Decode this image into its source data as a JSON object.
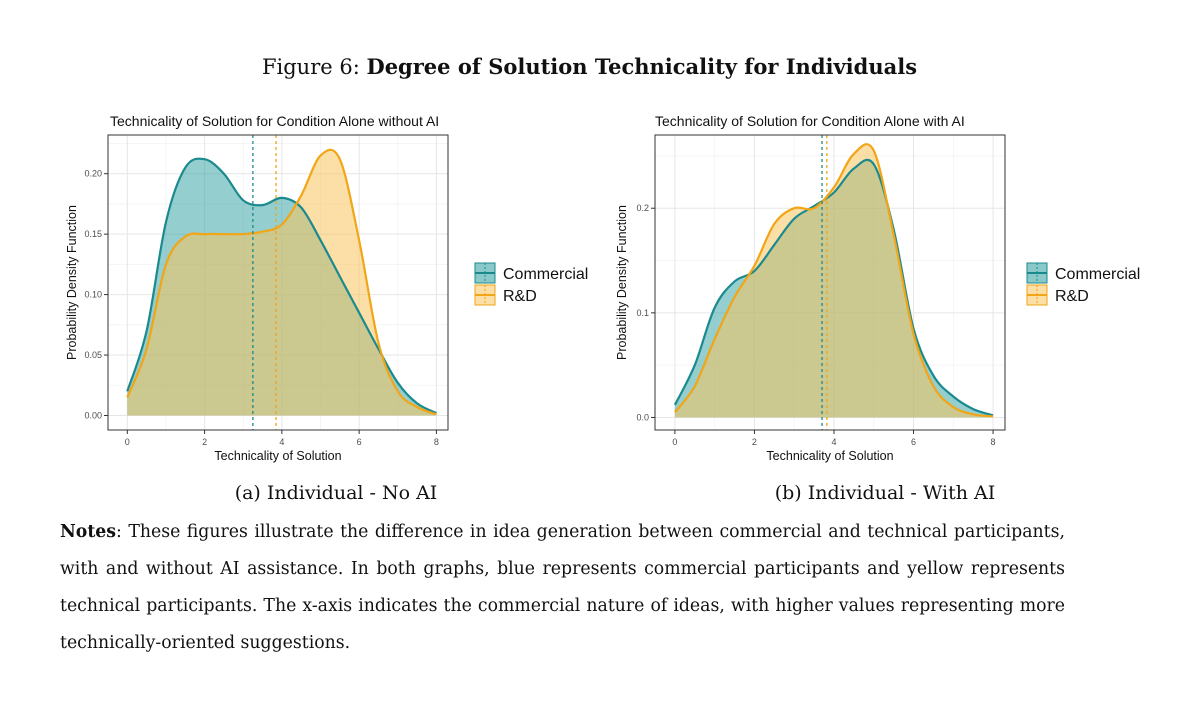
{
  "figure": {
    "prefix": "Figure 6:",
    "title": "Degree of Solution Technicality for Individuals"
  },
  "colors": {
    "commercial": "#1b8a8f",
    "rd": "#f2a516",
    "commercial_fill": "#2a9d9d",
    "rd_fill": "#f8c45c"
  },
  "chart_data": [
    {
      "type": "area",
      "title": "Technicality of Solution for Condition Alone without AI",
      "xlabel": "Technicality of Solution",
      "ylabel": "Probability Density Function",
      "xlim": [
        -0.5,
        8.3
      ],
      "ylim": [
        -0.012,
        0.232
      ],
      "xticks": [
        "0",
        "2",
        "4",
        "6",
        "8"
      ],
      "xtick_values": [
        0,
        2,
        4,
        6,
        8
      ],
      "yticks": [
        "0.00",
        "0.05",
        "0.10",
        "0.15",
        "0.20"
      ],
      "ytick_values": [
        0,
        0.05,
        0.1,
        0.15,
        0.2
      ],
      "legend": [
        "Commercial",
        "R&D"
      ],
      "legend_position": "right",
      "series": [
        {
          "name": "Commercial",
          "mean": 3.25,
          "x": [
            0,
            0.5,
            1,
            1.5,
            2,
            2.5,
            3,
            3.5,
            4,
            4.5,
            5,
            5.5,
            6,
            6.5,
            7,
            7.5,
            8
          ],
          "y": [
            0.02,
            0.07,
            0.16,
            0.205,
            0.212,
            0.2,
            0.178,
            0.174,
            0.18,
            0.172,
            0.145,
            0.115,
            0.085,
            0.055,
            0.027,
            0.01,
            0.002
          ]
        },
        {
          "name": "R&D",
          "mean": 3.85,
          "x": [
            0,
            0.5,
            1,
            1.5,
            2,
            2.5,
            3,
            3.5,
            4,
            4.5,
            5,
            5.5,
            6,
            6.5,
            7,
            7.5,
            8
          ],
          "y": [
            0.015,
            0.055,
            0.125,
            0.148,
            0.15,
            0.15,
            0.15,
            0.152,
            0.158,
            0.182,
            0.215,
            0.212,
            0.145,
            0.06,
            0.02,
            0.007,
            0.001
          ]
        }
      ]
    },
    {
      "type": "area",
      "title": "Technicality of Solution for Condition Alone with AI",
      "xlabel": "Technicality of Solution",
      "ylabel": "Probability Density Function",
      "xlim": [
        -0.5,
        8.3
      ],
      "ylim": [
        -0.012,
        0.27
      ],
      "xticks": [
        "0",
        "2",
        "4",
        "6",
        "8"
      ],
      "xtick_values": [
        0,
        2,
        4,
        6,
        8
      ],
      "yticks": [
        "0.0",
        "0.1",
        "0.2"
      ],
      "ytick_values": [
        0,
        0.1,
        0.2
      ],
      "legend": [
        "Commercial",
        "R&D"
      ],
      "legend_position": "right",
      "series": [
        {
          "name": "Commercial",
          "mean": 3.7,
          "x": [
            0,
            0.5,
            1,
            1.5,
            2,
            2.5,
            3,
            3.5,
            4,
            4.5,
            5,
            5.5,
            6,
            6.5,
            7,
            7.5,
            8
          ],
          "y": [
            0.012,
            0.05,
            0.105,
            0.13,
            0.14,
            0.165,
            0.19,
            0.202,
            0.215,
            0.238,
            0.242,
            0.18,
            0.085,
            0.04,
            0.02,
            0.008,
            0.002
          ]
        },
        {
          "name": "R&D",
          "mean": 3.82,
          "x": [
            0,
            0.5,
            1,
            1.5,
            2,
            2.5,
            3,
            3.5,
            4,
            4.5,
            5,
            5.5,
            6,
            6.5,
            7,
            7.5,
            8
          ],
          "y": [
            0.005,
            0.03,
            0.075,
            0.115,
            0.145,
            0.185,
            0.2,
            0.2,
            0.22,
            0.252,
            0.255,
            0.175,
            0.08,
            0.03,
            0.01,
            0.003,
            0.001
          ]
        }
      ]
    }
  ],
  "captions": {
    "a": "(a) Individual - No AI",
    "b": "(b) Individual - With AI"
  },
  "notes": {
    "label": "Notes",
    "text": ": These figures illustrate the difference in idea generation between commercial and technical participants, with and without AI assistance. In both graphs, blue represents commercial participants and yellow represents technical participants. The x-axis indicates the commercial nature of ideas, with higher values representing more technically-oriented suggestions."
  }
}
